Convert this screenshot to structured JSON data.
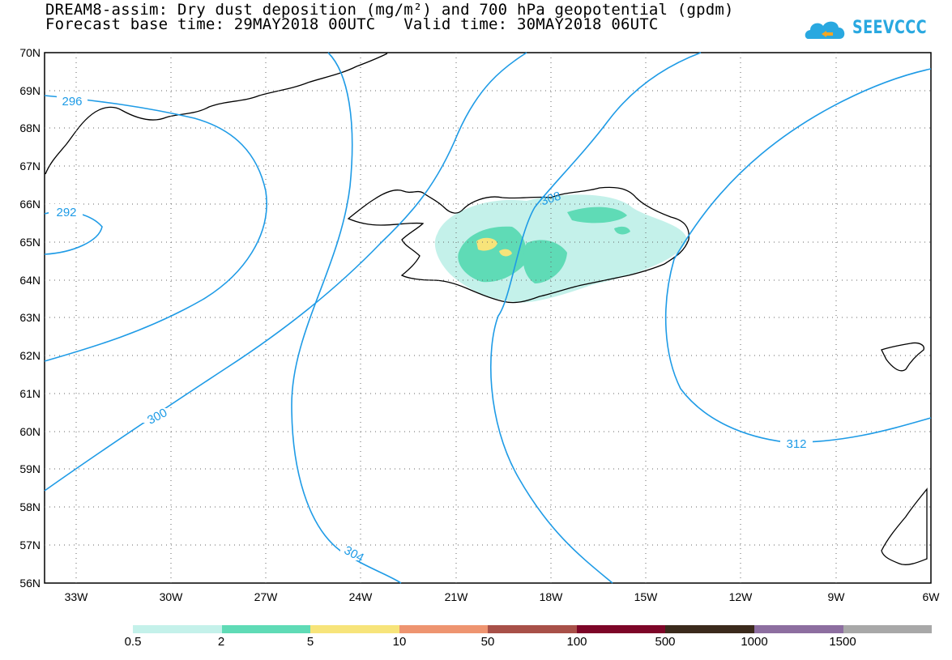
{
  "header": {
    "line1": "DREAM8-assim: Dry dust deposition (mg/m²) and 700 hPa geopotential (gpdm)",
    "line2": "Forecast base time: 29MAY2018 00UTC   Valid time: 30MAY2018 06UTC"
  },
  "logo": {
    "text": "SEEVCCC",
    "icon": "cloud-logo-icon",
    "color": "#29a8e0"
  },
  "map": {
    "lat_labels": [
      "70N",
      "69N",
      "68N",
      "67N",
      "66N",
      "65N",
      "64N",
      "63N",
      "62N",
      "61N",
      "60N",
      "59N",
      "58N",
      "57N",
      "56N"
    ],
    "lon_labels": [
      "33W",
      "30W",
      "27W",
      "24W",
      "21W",
      "18W",
      "15W",
      "12W",
      "9W",
      "6W"
    ],
    "contour_labels": [
      "296",
      "292",
      "300",
      "304",
      "308",
      "312"
    ],
    "contour_color": "#1e9be6"
  },
  "legend": {
    "colors": [
      "#c4f1ea",
      "#5fdbb6",
      "#f7e47a",
      "#ee9470",
      "#a85048",
      "#7d0628",
      "#3b2a1c",
      "#8d6ea0",
      "#a8a8a8"
    ],
    "labels": [
      "0.5",
      "2",
      "5",
      "10",
      "50",
      "100",
      "500",
      "1000",
      "1500"
    ]
  }
}
